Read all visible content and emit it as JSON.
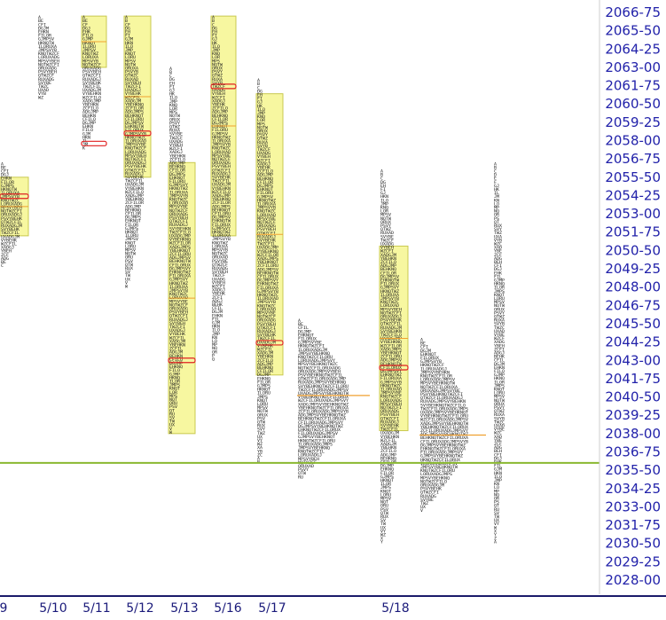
{
  "chart_data": {
    "type": "market-profile",
    "ylim": [
      2027.5,
      2067.5
    ],
    "y_ticks": [
      "2066-75",
      "2065-50",
      "2064-25",
      "2063-00",
      "2061-75",
      "2060-50",
      "2059-25",
      "2058-00",
      "2056-75",
      "2055-50",
      "2054-25",
      "2053-00",
      "2051-75",
      "2050-50",
      "2049-25",
      "2048-00",
      "2046-75",
      "2045-50",
      "2044-25",
      "2043-00",
      "2041-75",
      "2040-50",
      "2039-25",
      "2038-00",
      "2036-75",
      "2035-50",
      "2034-25",
      "2033-00",
      "2031-75",
      "2030-50",
      "2029-25",
      "2028-00"
    ],
    "x_ticks": [
      "9",
      "5/10",
      "5/11",
      "5/12",
      "5/13",
      "5/16",
      "5/17",
      "5/18"
    ],
    "reference_line": {
      "value": 2036.0,
      "color": "#8ab830"
    },
    "colors": {
      "value_area": "#f7f7a0",
      "value_area_border": "#c9c950",
      "poc": "#e02020",
      "letters": "#1a1a1a",
      "axis_text": "#2222aa",
      "orange": "#f0a030",
      "green": "#2ecc40"
    },
    "profiles": [
      {
        "label": "9",
        "low": 2049.5,
        "high": 2056.5,
        "va_low": 2051.5,
        "va_high": 2055.5,
        "poc": 2054.2
      },
      {
        "label": "5/10",
        "low": 2060.8,
        "high": 2066.5,
        "va_low": null,
        "va_high": null,
        "poc": null
      },
      {
        "label": "5/11",
        "low": 2057.5,
        "high": 2066.5,
        "va_low": 2063.0,
        "va_high": 2066.5,
        "poc": 2057.8
      },
      {
        "label": "5/12",
        "low": 2048.0,
        "high": 2066.5,
        "va_low": 2055.5,
        "va_high": 2066.5,
        "poc": 2058.5
      },
      {
        "label": "5/13",
        "low": 2038.0,
        "high": 2063.0,
        "va_low": 2038.0,
        "va_high": 2056.5,
        "poc": 2043.0
      },
      {
        "label": "5/16",
        "low": 2043.0,
        "high": 2066.5,
        "va_low": 2051.5,
        "va_high": 2066.5,
        "poc": 2061.7
      },
      {
        "label": "5/17",
        "low": 2036.0,
        "high": 2062.2,
        "va_low": 2042.0,
        "va_high": 2061.2,
        "poc": 2044.2
      },
      {
        "label": "",
        "low": 2035.0,
        "high": 2045.8,
        "va_low": null,
        "va_high": null,
        "poc": null
      },
      {
        "label": "5/18",
        "low": 2030.5,
        "high": 2056.0,
        "va_low": 2038.2,
        "va_high": 2050.8,
        "poc": 2042.5
      },
      {
        "label": "",
        "low": 2032.8,
        "high": 2044.5,
        "va_low": null,
        "va_high": null,
        "poc": null
      },
      {
        "label": "",
        "low": 2030.5,
        "high": 2056.5,
        "va_low": null,
        "va_high": null,
        "poc": null
      }
    ]
  }
}
